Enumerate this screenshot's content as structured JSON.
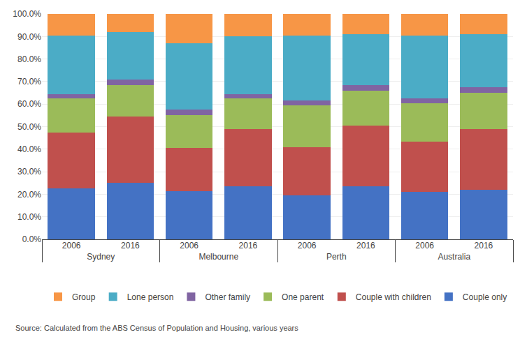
{
  "chart_data": {
    "type": "bar",
    "stacked": true,
    "grid": true,
    "legend": "bottom",
    "categories": [
      [
        "Sydney",
        "2006"
      ],
      [
        "Sydney",
        "2016"
      ],
      [
        "Melbourne",
        "2006"
      ],
      [
        "Melbourne",
        "2016"
      ],
      [
        "Perth",
        "2006"
      ],
      [
        "Perth",
        "2016"
      ],
      [
        "Australia",
        "2006"
      ],
      [
        "Australia",
        "2016"
      ]
    ],
    "series": [
      {
        "name": "Couple only",
        "color": "#4472C4",
        "values": [
          22.5,
          25.0,
          21.5,
          23.5,
          19.5,
          23.5,
          21.0,
          22.0
        ]
      },
      {
        "name": "Couple with children",
        "color": "#C0504D",
        "values": [
          25.0,
          29.5,
          19.0,
          25.5,
          21.5,
          27.0,
          22.5,
          27.0
        ]
      },
      {
        "name": "One parent",
        "color": "#9BBB59",
        "values": [
          15.0,
          14.0,
          14.5,
          13.5,
          18.5,
          15.5,
          17.0,
          16.0
        ]
      },
      {
        "name": "Other family",
        "color": "#8064A2",
        "values": [
          2.0,
          2.5,
          2.5,
          2.0,
          2.0,
          2.5,
          2.0,
          2.5
        ]
      },
      {
        "name": "Lone person",
        "color": "#4BACC6",
        "values": [
          26.0,
          21.0,
          29.5,
          25.5,
          29.0,
          22.5,
          28.0,
          23.5
        ]
      },
      {
        "name": "Group",
        "color": "#F79646",
        "values": [
          9.5,
          8.0,
          13.0,
          10.0,
          9.5,
          9.0,
          9.5,
          9.0
        ]
      }
    ],
    "ylim": [
      0,
      100
    ],
    "yticks": [
      {
        "value": 0,
        "label": "0.0%"
      },
      {
        "value": 10,
        "label": "10.0%"
      },
      {
        "value": 20,
        "label": "20.0%"
      },
      {
        "value": 30,
        "label": "30.0%"
      },
      {
        "value": 40,
        "label": "40.0%"
      },
      {
        "value": 50,
        "label": "50.0%"
      },
      {
        "value": 60,
        "label": "60.0%"
      },
      {
        "value": 70,
        "label": "70.0%"
      },
      {
        "value": 80,
        "label": "80.0%"
      },
      {
        "value": 90,
        "label": "90.0%"
      },
      {
        "value": 100,
        "label": "100.0%"
      }
    ],
    "annotations": [
      "Source: Calculated from the ABS Census of Population and Housing, various years"
    ]
  }
}
